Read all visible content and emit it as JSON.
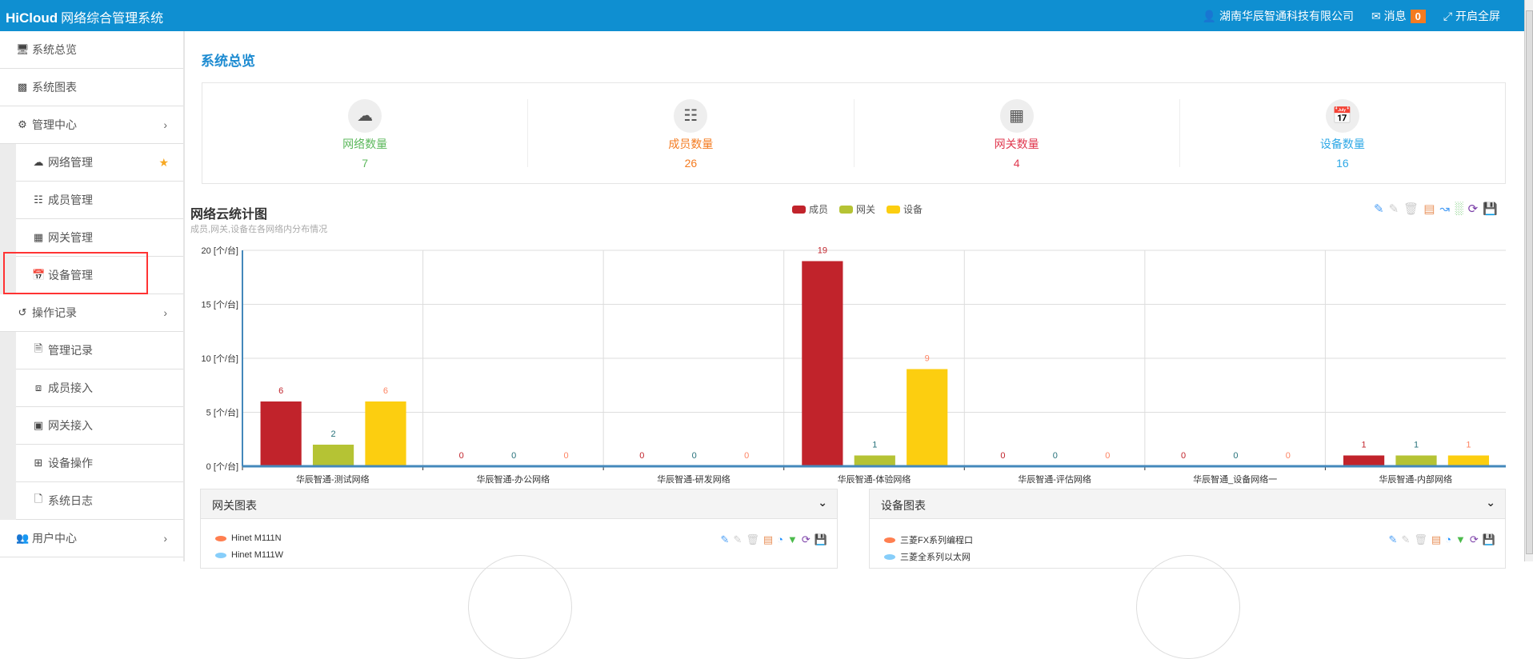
{
  "header": {
    "brand": "HiCloud",
    "system_name": "网络综合管理系统",
    "company": "湖南华辰智通科技有限公司",
    "messages_label": "消息",
    "messages_count": "0",
    "fullscreen_label": "开启全屏"
  },
  "sidebar": {
    "items": [
      {
        "label": "系统总览",
        "icon": "desktop-icon"
      },
      {
        "label": "系统图表",
        "icon": "bar-chart-icon"
      },
      {
        "label": "管理中心",
        "icon": "gears-icon",
        "expandable": true
      },
      {
        "label": "网络管理",
        "icon": "cloud-icon",
        "sub": true,
        "starred": true
      },
      {
        "label": "成员管理",
        "icon": "sitemap-icon",
        "sub": true
      },
      {
        "label": "网关管理",
        "icon": "grid-icon",
        "sub": true
      },
      {
        "label": "设备管理",
        "icon": "calendar-icon",
        "sub": true,
        "highlighted": true
      },
      {
        "label": "操作记录",
        "icon": "history-icon",
        "expandable": true
      },
      {
        "label": "管理记录",
        "icon": "file-text-icon",
        "sub": true
      },
      {
        "label": "成员接入",
        "icon": "share-icon",
        "sub": true
      },
      {
        "label": "网关接入",
        "icon": "share-square-icon",
        "sub": true
      },
      {
        "label": "设备操作",
        "icon": "plus-square-icon",
        "sub": true
      },
      {
        "label": "系统日志",
        "icon": "file-icon",
        "sub": true
      },
      {
        "label": "用户中心",
        "icon": "users-icon",
        "expandable": true
      }
    ]
  },
  "page": {
    "title": "系统总览"
  },
  "stats": [
    {
      "label": "网络数量",
      "value": "7",
      "color": "#5cb85c",
      "icon": "cloud-icon"
    },
    {
      "label": "成员数量",
      "value": "26",
      "color": "#f47b20",
      "icon": "sitemap-icon"
    },
    {
      "label": "网关数量",
      "value": "4",
      "color": "#e0384f",
      "icon": "grid-icon"
    },
    {
      "label": "设备数量",
      "value": "16",
      "color": "#2ea8e6",
      "icon": "calendar-icon"
    }
  ],
  "chart_data": {
    "type": "bar",
    "title": "网络云统计图",
    "subtitle": "成员,网关,设备在各网络内分布情况",
    "categories": [
      "华辰智通-测试网络",
      "华辰智通-办公网络",
      "华辰智通-研发网络",
      "华辰智通-体验网络",
      "华辰智通-评估网络",
      "华辰智通_设备网络一",
      "华辰智通-内部网络"
    ],
    "series": [
      {
        "name": "成员",
        "values": [
          6,
          0,
          0,
          19,
          0,
          0,
          1
        ],
        "color": "#C1232B",
        "label_color": "#C1232B"
      },
      {
        "name": "网关",
        "values": [
          2,
          0,
          0,
          1,
          0,
          0,
          1
        ],
        "color": "#B5C334",
        "label_color": "#27727B"
      },
      {
        "name": "设备",
        "values": [
          6,
          0,
          0,
          9,
          0,
          0,
          1
        ],
        "color": "#FCCE10",
        "label_color": "#FE8463"
      }
    ],
    "ylim": [
      0,
      20
    ],
    "yticks": [
      0,
      5,
      10,
      15,
      20
    ],
    "ytick_suffix": " [个/台]",
    "grid": true,
    "legend": "top-center"
  },
  "panels": [
    {
      "title": "网关图表",
      "legend": [
        {
          "name": "Hinet M111N",
          "color": "#ff7f50"
        },
        {
          "name": "Hinet M111W",
          "color": "#87cefa"
        }
      ]
    },
    {
      "title": "设备图表",
      "legend": [
        {
          "name": "三菱FX系列编程口",
          "color": "#ff7f50"
        },
        {
          "name": "三菱全系列以太网",
          "color": "#87cefa"
        }
      ]
    }
  ]
}
